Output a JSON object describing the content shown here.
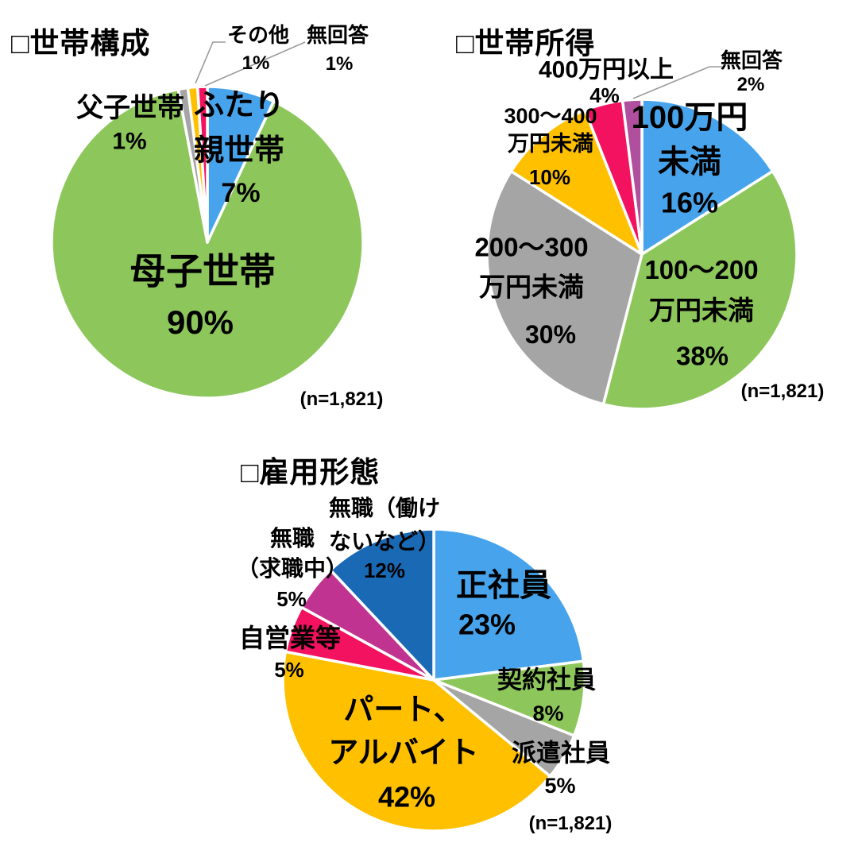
{
  "figure": {
    "background": "#ffffff",
    "text_color": "#000000",
    "leader_line_color": "#9b9b9b",
    "slice_border_color": "#ffffff"
  },
  "chart_data": [
    {
      "type": "pie",
      "title": "□世帯構成",
      "n_label": "(n=1,821)",
      "units": "percent",
      "start_angle": "12-oclock",
      "direction": "clockwise",
      "slices": [
        {
          "label": "ふたり\n親世帯",
          "value": 7,
          "pct": "7%",
          "color": "#47A4EC"
        },
        {
          "label": "母子世帯",
          "value": 90,
          "pct": "90%",
          "color": "#8DC75B"
        },
        {
          "label": "父子世帯",
          "value": 1,
          "pct": "1%",
          "color": "#A5A5A5"
        },
        {
          "label": "その他",
          "value": 1,
          "pct": "1%",
          "color": "#FFC000"
        },
        {
          "label": "無回答",
          "value": 1,
          "pct": "1%",
          "color": "#F3125F"
        }
      ]
    },
    {
      "type": "pie",
      "title": "□世帯所得",
      "n_label": "(n=1,821)",
      "units": "percent",
      "start_angle": "12-oclock",
      "direction": "clockwise",
      "slices": [
        {
          "label": "100万円\n未満",
          "value": 16,
          "pct": "16%",
          "color": "#47A4EC"
        },
        {
          "label": "100〜200\n万円未満",
          "value": 38,
          "pct": "38%",
          "color": "#8DC75B"
        },
        {
          "label": "200〜300\n万円未満",
          "value": 30,
          "pct": "30%",
          "color": "#A5A5A5"
        },
        {
          "label": "300〜400\n万円未満",
          "value": 10,
          "pct": "10%",
          "color": "#FFC000"
        },
        {
          "label": "400万円以上",
          "value": 4,
          "pct": "4%",
          "color": "#F3125F"
        },
        {
          "label": "無回答",
          "value": 2,
          "pct": "2%",
          "color": "#AF4F9E"
        }
      ]
    },
    {
      "type": "pie",
      "title": "□雇用形態",
      "n_label": "(n=1,821)",
      "units": "percent",
      "start_angle": "12-oclock",
      "direction": "clockwise",
      "slices": [
        {
          "label": "正社員",
          "value": 23,
          "pct": "23%",
          "color": "#47A4EC"
        },
        {
          "label": "契約社員",
          "value": 8,
          "pct": "8%",
          "color": "#8DC75B"
        },
        {
          "label": "派遣社員",
          "value": 5,
          "pct": "5%",
          "color": "#A5A5A5"
        },
        {
          "label": "パート、\nアルバイト",
          "value": 42,
          "pct": "42%",
          "color": "#FFC000"
        },
        {
          "label": "自営業等",
          "value": 5,
          "pct": "5%",
          "color": "#F3125F"
        },
        {
          "label": "無職\n（求職中）",
          "value": 5,
          "pct": "5%",
          "color": "#C03390"
        },
        {
          "label": "無職（働け\nないなど）",
          "value": 12,
          "pct": "12%",
          "color": "#1A69B5"
        }
      ]
    }
  ]
}
